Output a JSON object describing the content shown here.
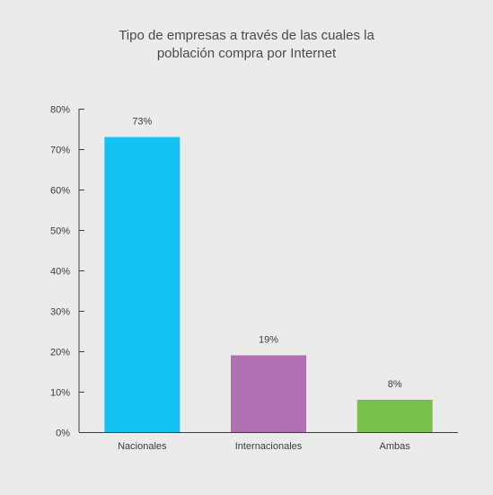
{
  "chart_data": {
    "type": "bar",
    "title_lines": [
      "Tipo de empresas a través de las cuales la",
      "población compra por Internet"
    ],
    "categories": [
      "Nacionales",
      "Internacionales",
      "Ambas"
    ],
    "values": [
      73,
      19,
      8
    ],
    "data_labels": [
      "73%",
      "19%",
      "8%"
    ],
    "bar_colors": [
      "#12c2f1",
      "#b170b2",
      "#79c04b"
    ],
    "ylim": [
      0,
      80
    ],
    "yticks": [
      0,
      10,
      20,
      30,
      40,
      50,
      60,
      70,
      80
    ],
    "ytick_labels": [
      "0%",
      "10%",
      "20%",
      "30%",
      "40%",
      "50%",
      "60%",
      "70%",
      "80%"
    ],
    "xlabel": "",
    "ylabel": "",
    "grid": false
  }
}
